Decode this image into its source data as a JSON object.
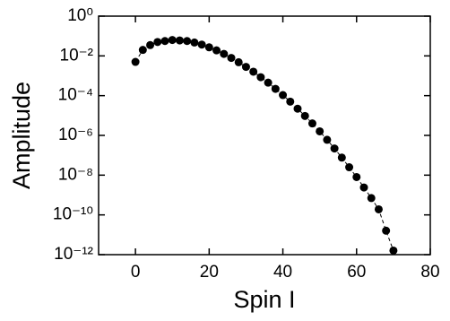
{
  "chart_data": {
    "type": "scatter",
    "x_label": "Spin I",
    "y_label": "Amplitude",
    "x": [
      0,
      2,
      4,
      6,
      8,
      10,
      12,
      14,
      16,
      18,
      20,
      22,
      24,
      26,
      28,
      30,
      32,
      34,
      36,
      38,
      40,
      42,
      44,
      46,
      48,
      50,
      52,
      54,
      56,
      58,
      60,
      62,
      64,
      66,
      68,
      70
    ],
    "series": [
      {
        "color": "#000000",
        "values": [
          0.005,
          0.02,
          0.035,
          0.05,
          0.056,
          0.063,
          0.06,
          0.056,
          0.047,
          0.037,
          0.027,
          0.019,
          0.0126,
          0.0079,
          0.0048,
          0.0028,
          0.0016,
          0.00085,
          0.00045,
          0.00022,
          0.000107,
          5e-05,
          2.2e-05,
          9.5e-06,
          4e-06,
          1.6e-06,
          6e-07,
          2.2e-07,
          7.6e-08,
          2.5e-08,
          8e-09,
          2.4e-09,
          7e-10,
          1.9e-10,
          1.6e-11,
          1.6e-12
        ]
      }
    ],
    "xlim": [
      -10,
      80
    ],
    "xticks": [
      0,
      20,
      40,
      60,
      80
    ],
    "ylim": [
      1e-12,
      1
    ],
    "log_y": true,
    "yticks": [
      {
        "value": 1,
        "label": "10⁰"
      },
      {
        "value": 0.01,
        "label": "10⁻²"
      },
      {
        "value": 0.0001,
        "label": "10⁻⁴"
      },
      {
        "value": 1e-06,
        "label": "10⁻⁶"
      },
      {
        "value": 1e-08,
        "label": "10⁻⁸"
      },
      {
        "value": 1e-10,
        "label": "10⁻¹⁰"
      },
      {
        "value": 1e-12,
        "label": "10⁻¹²"
      }
    ]
  }
}
